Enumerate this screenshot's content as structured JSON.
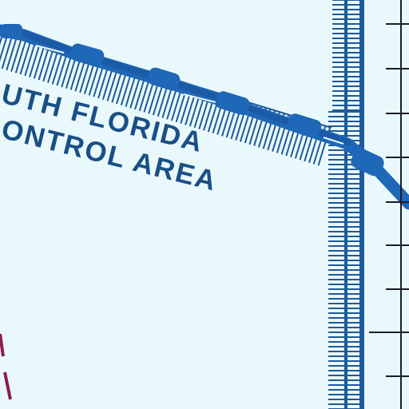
{
  "chart_type": "aeronautical sectional chart excerpt",
  "area_label": {
    "line1": "UTH FLORIDA",
    "line2": "CONTROL AREA",
    "line3": "ONTROL AREA"
  },
  "colors": {
    "background": "#e9f9fb",
    "airspace_boundary": "#1e5a9a",
    "airway": "#1f67b7",
    "label_text": "#1a4f87",
    "moa_boundary": "#8b1e4a",
    "grid_line": "#1b1b2e"
  },
  "features": [
    "control-area boundary hatched band (diagonal)",
    "control-area boundary hatched band (vertical)",
    "airway route line",
    "latitude/longitude grid line with tick marks",
    "restricted/MOA dashed boundary"
  ]
}
